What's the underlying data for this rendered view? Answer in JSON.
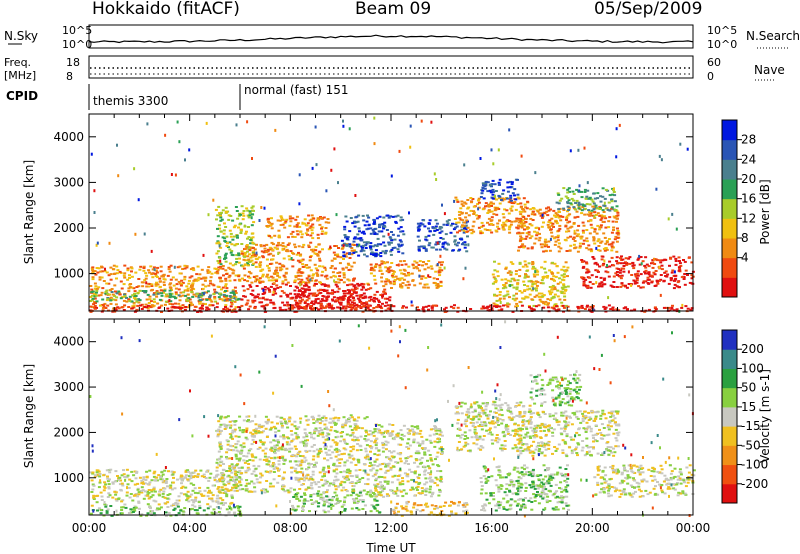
{
  "header": {
    "station": "Hokkaido (fitACF)",
    "beam": "Beam 09",
    "date": "05/Sep/2009"
  },
  "noise_panel": {
    "left_label": "N.Sky",
    "right_label": "N.Search",
    "left_ticks": [
      "10^5",
      "10^0"
    ],
    "right_ticks": [
      "10^5",
      "10^0"
    ]
  },
  "freq_panel": {
    "left_label_line1": "Freq.",
    "left_label_line2": "[MHz]",
    "left_ticks": [
      "18",
      "8"
    ],
    "right_label": "Nave",
    "right_ticks": [
      "60",
      "0"
    ]
  },
  "cpid_panel": {
    "label": "CPID",
    "modes": [
      {
        "text": "themis 3300",
        "start_hour": 0
      },
      {
        "text": "normal (fast) 151",
        "start_hour": 6
      }
    ]
  },
  "chart_data": [
    {
      "type": "heatmap",
      "name": "power",
      "ylabel": "Slant Range [km]",
      "xlabel": "",
      "xlim_hours": [
        0,
        24
      ],
      "ylim": [
        180,
        4500
      ],
      "yticks": [
        "1000",
        "2000",
        "3000",
        "4000"
      ],
      "colorbar_label": "Power [dB]",
      "colorbar_ticks": [
        "28",
        "24",
        "20",
        "16",
        "12",
        "8",
        "4"
      ],
      "colors": [
        "#0018e0",
        "#2a55b5",
        "#4a7f8e",
        "#2aa055",
        "#a8cc2a",
        "#f0c010",
        "#f08a12",
        "#f04a10",
        "#e01010"
      ],
      "regions": [
        {
          "t0": 0.0,
          "t1": 6.0,
          "r0": 250,
          "r1": 1200,
          "level": 6
        },
        {
          "t0": 0.0,
          "t1": 6.0,
          "r0": 400,
          "r1": 650,
          "level": 3
        },
        {
          "t0": 5.0,
          "t1": 6.5,
          "r0": 1200,
          "r1": 2500,
          "level": 4
        },
        {
          "t0": 6.0,
          "t1": 11.0,
          "r0": 250,
          "r1": 800,
          "level": 8
        },
        {
          "t0": 6.0,
          "t1": 10.5,
          "r0": 800,
          "r1": 1700,
          "level": 6
        },
        {
          "t0": 7.0,
          "t1": 9.5,
          "r0": 1800,
          "r1": 2300,
          "level": 6
        },
        {
          "t0": 8.0,
          "t1": 12.0,
          "r0": 250,
          "r1": 700,
          "level": 8
        },
        {
          "t0": 10.0,
          "t1": 12.5,
          "r0": 1400,
          "r1": 2300,
          "level": 1
        },
        {
          "t0": 11.0,
          "t1": 14.0,
          "r0": 700,
          "r1": 1300,
          "level": 6
        },
        {
          "t0": 13.0,
          "t1": 15.0,
          "r0": 1500,
          "r1": 2200,
          "level": 1
        },
        {
          "t0": 14.5,
          "t1": 17.5,
          "r0": 1900,
          "r1": 2700,
          "level": 6
        },
        {
          "t0": 15.5,
          "t1": 17.0,
          "r0": 2600,
          "r1": 3100,
          "level": 1
        },
        {
          "t0": 16.0,
          "t1": 19.0,
          "r0": 300,
          "r1": 1300,
          "level": 5
        },
        {
          "t0": 17.0,
          "t1": 21.0,
          "r0": 1500,
          "r1": 2500,
          "level": 6
        },
        {
          "t0": 18.5,
          "t1": 21.0,
          "r0": 2400,
          "r1": 2900,
          "level": 3
        },
        {
          "t0": 19.5,
          "t1": 24.0,
          "r0": 700,
          "r1": 1400,
          "level": 8
        },
        {
          "t0": 0.0,
          "t1": 24.0,
          "r0": 180,
          "r1": 330,
          "level": 8
        }
      ]
    },
    {
      "type": "heatmap",
      "name": "velocity",
      "ylabel": "Slant Range [km]",
      "xlabel": "Time UT",
      "xlim_hours": [
        0,
        24
      ],
      "ylim": [
        180,
        4500
      ],
      "xticks": [
        "00:00",
        "04:00",
        "08:00",
        "12:00",
        "16:00",
        "20:00",
        "00:00"
      ],
      "yticks": [
        "1000",
        "2000",
        "3000",
        "4000"
      ],
      "colorbar_label": "Velocity [m s-1]",
      "colorbar_ticks": [
        "200",
        "100",
        "50",
        "15",
        "-15",
        "-50",
        "-100",
        "-200"
      ],
      "colors": [
        "#2030c0",
        "#3a8a8a",
        "#2aa040",
        "#88d040",
        "#c8c8c0",
        "#f0c020",
        "#f09018",
        "#f05010",
        "#e01010"
      ],
      "regions": [
        {
          "t0": 0.0,
          "t1": 6.0,
          "r0": 400,
          "r1": 1200,
          "level": 4
        },
        {
          "t0": 0.0,
          "t1": 6.0,
          "r0": 180,
          "r1": 400,
          "level": 3
        },
        {
          "t0": 5.0,
          "t1": 11.0,
          "r0": 700,
          "r1": 2400,
          "level": 4
        },
        {
          "t0": 8.0,
          "t1": 11.5,
          "r0": 250,
          "r1": 700,
          "level": 3
        },
        {
          "t0": 11.0,
          "t1": 14.0,
          "r0": 600,
          "r1": 2200,
          "level": 4
        },
        {
          "t0": 12.0,
          "t1": 15.0,
          "r0": 180,
          "r1": 500,
          "level": 5
        },
        {
          "t0": 14.5,
          "t1": 17.5,
          "r0": 1600,
          "r1": 2700,
          "level": 4
        },
        {
          "t0": 15.5,
          "t1": 19.0,
          "r0": 300,
          "r1": 1300,
          "level": 3
        },
        {
          "t0": 17.0,
          "t1": 21.0,
          "r0": 1500,
          "r1": 2500,
          "level": 4
        },
        {
          "t0": 17.5,
          "t1": 19.5,
          "r0": 2600,
          "r1": 3300,
          "level": 3
        },
        {
          "t0": 20.0,
          "t1": 24.0,
          "r0": 600,
          "r1": 1300,
          "level": 4
        }
      ]
    }
  ]
}
